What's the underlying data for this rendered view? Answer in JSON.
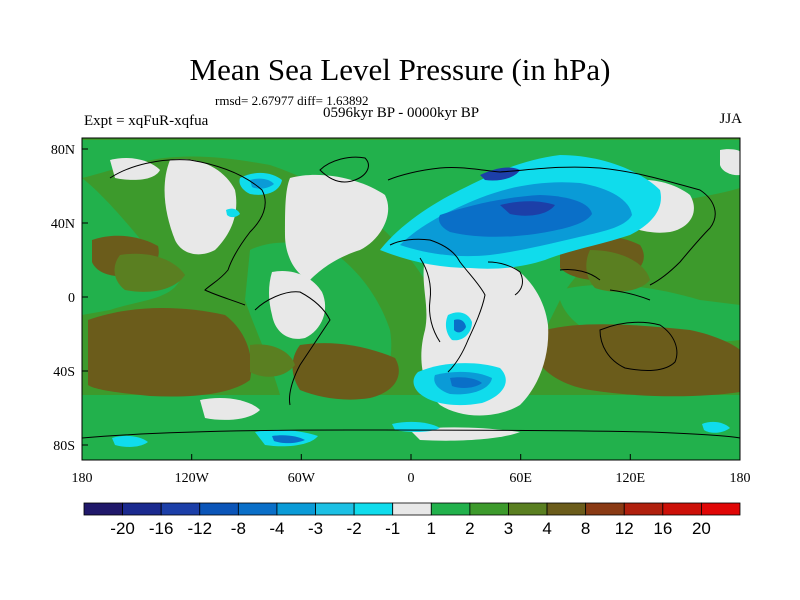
{
  "title": "Mean Sea Level Pressure (in hPa)",
  "stats_line": "rmsd= 2.67977 diff= 1.63892",
  "period_line": "0596kyr BP - 0000kyr BP",
  "experiment_label": "Expt = xqFuR-xqfua",
  "season_label": "JJA",
  "x_axis_ticks": [
    "180",
    "120W",
    "60W",
    "0",
    "60E",
    "120E",
    "180"
  ],
  "y_axis_ticks": [
    "80N",
    "40N",
    "0",
    "40S",
    "80S"
  ],
  "colorbar": {
    "tick_labels": [
      "-20",
      "-16",
      "-12",
      "-8",
      "-4",
      "-3",
      "-2",
      "-1",
      "1",
      "2",
      "3",
      "4",
      "8",
      "12",
      "16",
      "20"
    ],
    "colors": [
      "#20186a",
      "#1b2a8f",
      "#1c3fa8",
      "#0b55b8",
      "#0a6fc8",
      "#0a9bd7",
      "#1cc0e4",
      "#10dcec",
      "#e8e8e8",
      "#22b14c",
      "#3d9a2c",
      "#5a7f21",
      "#6b5c1b",
      "#8a3a14",
      "#b0200e",
      "#cc1008",
      "#e00606"
    ]
  },
  "colors": {
    "ocean_base": "#3d9a2c",
    "positive_weak": "#22b14c",
    "positive_mid": "#5a7f21",
    "positive_strong": "#6b5c1b",
    "near_zero": "#e8e8e8",
    "negative_weak": "#10dcec",
    "negative_mid": "#0a9bd7",
    "negative_strong": "#1c3fa8"
  }
}
